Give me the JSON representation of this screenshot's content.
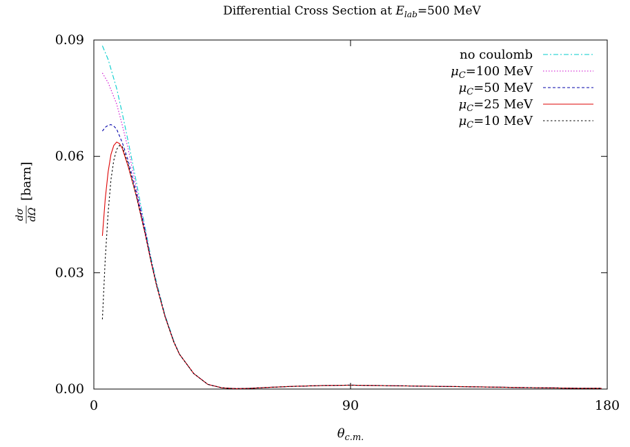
{
  "chart_data": {
    "type": "line",
    "title": {
      "pre": "Differential Cross Section at ",
      "sym": "E",
      "sub": "lab",
      "post": "=500 MeV"
    },
    "xlabel": {
      "sym": "θ",
      "sub": "c.m."
    },
    "ylabel": {
      "num": "dσ",
      "den": "dΩ",
      "unit": "[barn]"
    },
    "xlim": [
      0,
      180
    ],
    "ylim": [
      0,
      0.09
    ],
    "xticks": [
      0,
      90,
      180
    ],
    "xtick_labels": [
      "0",
      "90",
      "180"
    ],
    "yticks": [
      0.0,
      0.03,
      0.06,
      0.09
    ],
    "ytick_labels": [
      "0.00",
      "0.03",
      "0.06",
      "0.09"
    ],
    "grid": false,
    "legend_position": "top-right",
    "series": [
      {
        "name": "no coulomb",
        "label": {
          "pre": "no coulomb",
          "sym": "",
          "sub": "",
          "post": ""
        },
        "color": "#00cccc",
        "dash": "7 3 2 3",
        "x": [
          3,
          5,
          8,
          10,
          12,
          15,
          18,
          20,
          22,
          25,
          28,
          30,
          35,
          40,
          45,
          50,
          55,
          60,
          70,
          80,
          90,
          100,
          110,
          120,
          130,
          140,
          150,
          160,
          170,
          178
        ],
        "y": [
          0.0885,
          0.085,
          0.0775,
          0.071,
          0.064,
          0.053,
          0.0415,
          0.034,
          0.0275,
          0.019,
          0.0125,
          0.009,
          0.004,
          0.0012,
          0.0003,
          0.0001,
          0.0002,
          0.0004,
          0.0007,
          0.0009,
          0.001,
          0.0009,
          0.0008,
          0.0007,
          0.0006,
          0.0005,
          0.0004,
          0.0003,
          0.0002,
          0.0002
        ]
      },
      {
        "name": "μC=100 MeV",
        "label": {
          "pre": "",
          "sym": "μ",
          "sub": "C",
          "post": "=100 MeV"
        },
        "color": "#cc00cc",
        "dash": "1.5 2.5",
        "x": [
          3,
          5,
          8,
          10,
          12,
          15,
          18,
          20,
          22,
          25,
          28,
          30,
          35,
          40,
          45,
          50,
          55,
          60,
          70,
          80,
          90,
          100,
          110,
          120,
          130,
          140,
          150,
          160,
          170,
          178
        ],
        "y": [
          0.0815,
          0.079,
          0.0735,
          0.068,
          0.062,
          0.0515,
          0.041,
          0.0335,
          0.027,
          0.0188,
          0.0123,
          0.009,
          0.004,
          0.0012,
          0.0003,
          0.0001,
          0.0002,
          0.0004,
          0.0007,
          0.0009,
          0.001,
          0.0009,
          0.0008,
          0.0007,
          0.0006,
          0.0005,
          0.0004,
          0.0003,
          0.0002,
          0.0002
        ]
      },
      {
        "name": "μC=50 MeV",
        "label": {
          "pre": "",
          "sym": "μ",
          "sub": "C",
          "post": "=50 MeV"
        },
        "color": "#0000aa",
        "dash": "4 3",
        "x": [
          3,
          4,
          5,
          6,
          7,
          8,
          10,
          12,
          15,
          18,
          20,
          22,
          25,
          28,
          30,
          35,
          40,
          45,
          50,
          55,
          60,
          70,
          80,
          90,
          100,
          110,
          120,
          130,
          140,
          150,
          160,
          170,
          178
        ],
        "y": [
          0.0665,
          0.0675,
          0.068,
          0.0682,
          0.0678,
          0.067,
          0.0635,
          0.059,
          0.0505,
          0.0405,
          0.0332,
          0.0268,
          0.0187,
          0.0123,
          0.009,
          0.004,
          0.0012,
          0.0003,
          0.0001,
          0.0002,
          0.0004,
          0.0007,
          0.0009,
          0.001,
          0.0009,
          0.0008,
          0.0007,
          0.0006,
          0.0005,
          0.0004,
          0.0003,
          0.0002,
          0.0002
        ]
      },
      {
        "name": "μC=25 MeV",
        "label": {
          "pre": "",
          "sym": "μ",
          "sub": "C",
          "post": "=25 MeV"
        },
        "color": "#dd0000",
        "dash": "",
        "x": [
          3,
          4,
          5,
          6,
          7,
          8,
          9,
          10,
          12,
          15,
          18,
          20,
          22,
          25,
          28,
          30,
          35,
          40,
          45,
          50,
          55,
          60,
          70,
          80,
          90,
          100,
          110,
          120,
          130,
          140,
          150,
          160,
          170,
          178
        ],
        "y": [
          0.0395,
          0.049,
          0.056,
          0.0605,
          0.0628,
          0.0637,
          0.0633,
          0.062,
          0.0575,
          0.0495,
          0.04,
          0.033,
          0.0267,
          0.0186,
          0.0122,
          0.009,
          0.004,
          0.0012,
          0.0003,
          0.0001,
          0.0002,
          0.0004,
          0.0007,
          0.0009,
          0.001,
          0.0009,
          0.0008,
          0.0007,
          0.0006,
          0.0005,
          0.0004,
          0.0003,
          0.0002,
          0.0002
        ]
      },
      {
        "name": "μC=10 MeV",
        "label": {
          "pre": "",
          "sym": "μ",
          "sub": "C",
          "post": "=10 MeV"
        },
        "color": "#000000",
        "dash": "2.5 3",
        "x": [
          3,
          4,
          5,
          6,
          7,
          8,
          9,
          10,
          12,
          15,
          18,
          20,
          22,
          25,
          28,
          30,
          35,
          40,
          45,
          50,
          55,
          60,
          70,
          80,
          90,
          100,
          110,
          120,
          130,
          140,
          150,
          160,
          170,
          178
        ],
        "y": [
          0.018,
          0.0335,
          0.0455,
          0.054,
          0.059,
          0.0618,
          0.0628,
          0.0625,
          0.058,
          0.0495,
          0.04,
          0.033,
          0.0267,
          0.0186,
          0.0122,
          0.009,
          0.004,
          0.0012,
          0.0003,
          0.0001,
          0.0002,
          0.0004,
          0.0007,
          0.0009,
          0.001,
          0.0009,
          0.0008,
          0.0007,
          0.0006,
          0.0005,
          0.0004,
          0.0003,
          0.0002,
          0.0002
        ]
      }
    ]
  }
}
